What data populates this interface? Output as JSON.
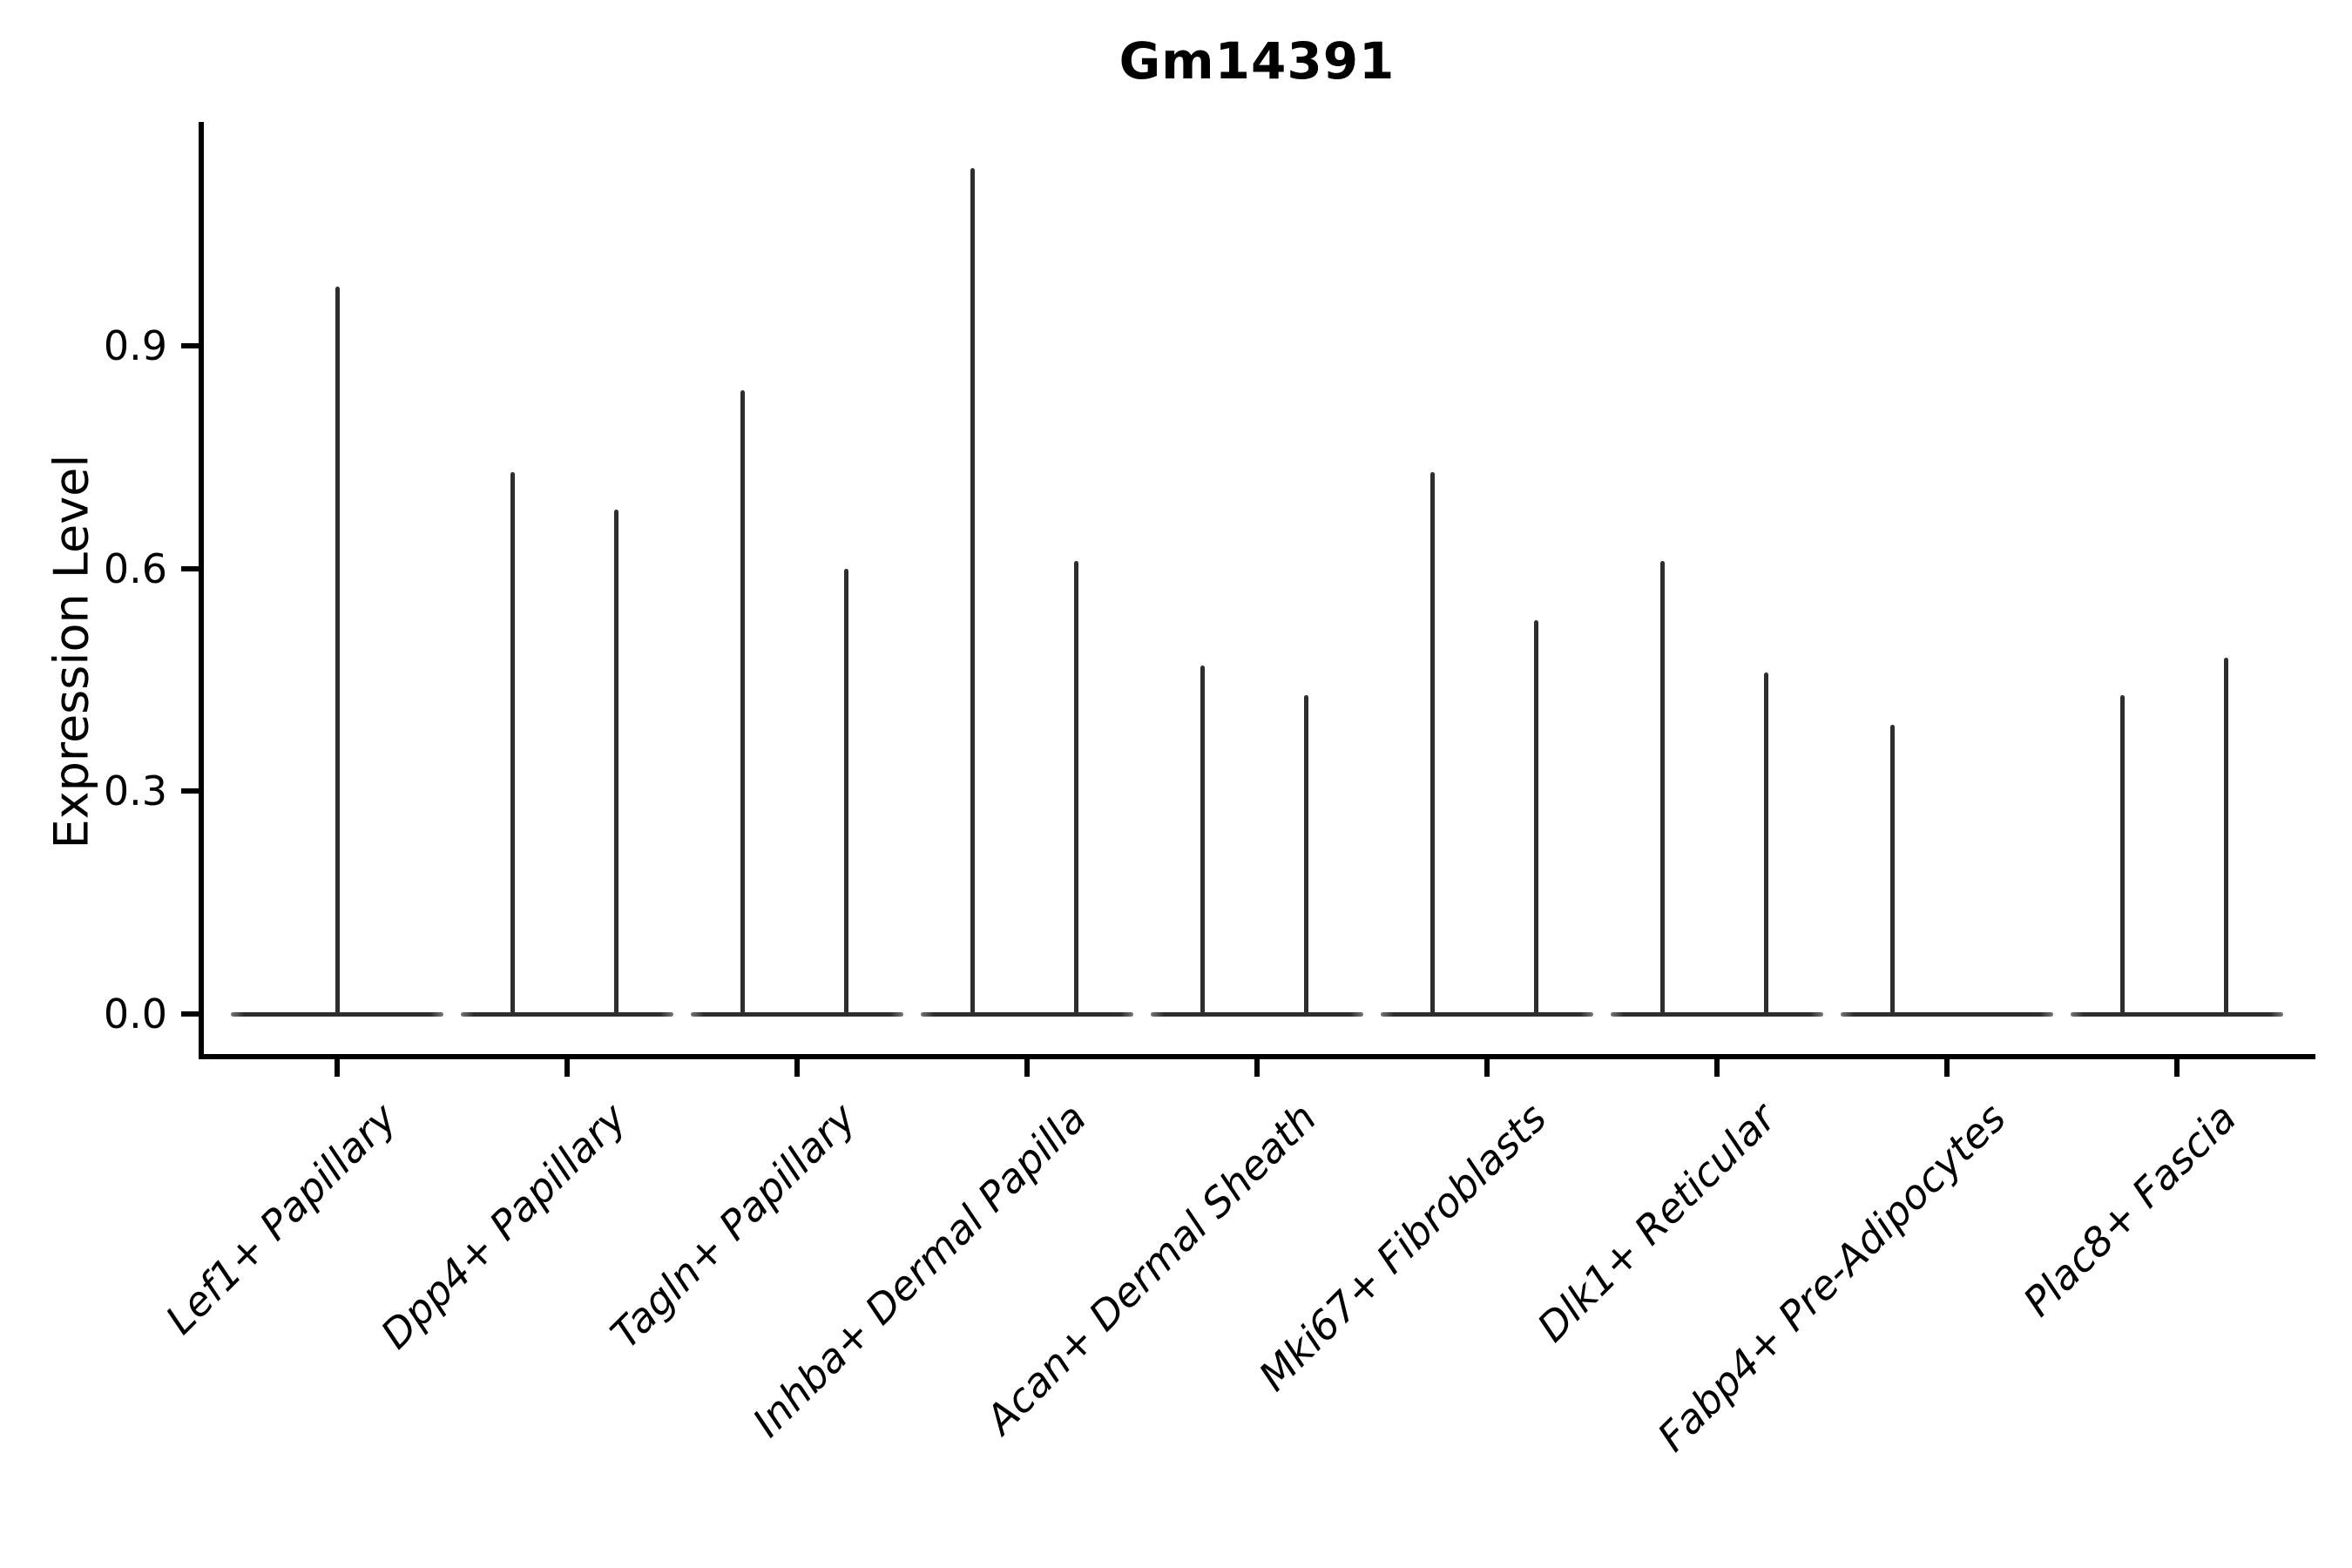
{
  "chart_data": {
    "type": "violin",
    "title": "Gm14391",
    "xlabel": "",
    "ylabel": "Expression Level",
    "yticks": [
      0.0,
      0.3,
      0.6,
      0.9
    ],
    "ylim": [
      0,
      1.2
    ],
    "grid": false,
    "legend": "none",
    "violin_color": "#2e2e2e",
    "note": "Sparse single-cell expression: each violin collapses to a flat base at 0 with a thin density spike reaching the max expression value",
    "categories": [
      {
        "label": "Lef1+ Papillary",
        "violins": [
          {
            "position": "center",
            "max_expression": 0.98
          }
        ]
      },
      {
        "label": "Dpp4+ Papillary",
        "violins": [
          {
            "position": "left",
            "max_expression": 0.73
          },
          {
            "position": "right",
            "max_expression": 0.68
          }
        ]
      },
      {
        "label": "Tagln+ Papillary",
        "violins": [
          {
            "position": "left",
            "max_expression": 0.84
          },
          {
            "position": "right",
            "max_expression": 0.6
          }
        ]
      },
      {
        "label": "Inhba+ Dermal Papilla",
        "violins": [
          {
            "position": "left",
            "max_expression": 1.14
          },
          {
            "position": "right",
            "max_expression": 0.61
          }
        ]
      },
      {
        "label": "Acan+ Dermal Sheath",
        "violins": [
          {
            "position": "left",
            "max_expression": 0.47
          },
          {
            "position": "right",
            "max_expression": 0.43
          }
        ]
      },
      {
        "label": "Mki67+ Fibroblasts",
        "violins": [
          {
            "position": "left",
            "max_expression": 0.73
          },
          {
            "position": "right",
            "max_expression": 0.53
          }
        ]
      },
      {
        "label": "Dlk1+ Reticular",
        "violins": [
          {
            "position": "left",
            "max_expression": 0.61
          },
          {
            "position": "right",
            "max_expression": 0.46
          }
        ]
      },
      {
        "label": "Fabp4+ Pre-Adipocytes",
        "violins": [
          {
            "position": "left",
            "max_expression": 0.39
          }
        ]
      },
      {
        "label": "Plac8+ Fascia",
        "violins": [
          {
            "position": "left",
            "max_expression": 0.43
          },
          {
            "position": "right",
            "max_expression": 0.48
          }
        ]
      }
    ]
  }
}
